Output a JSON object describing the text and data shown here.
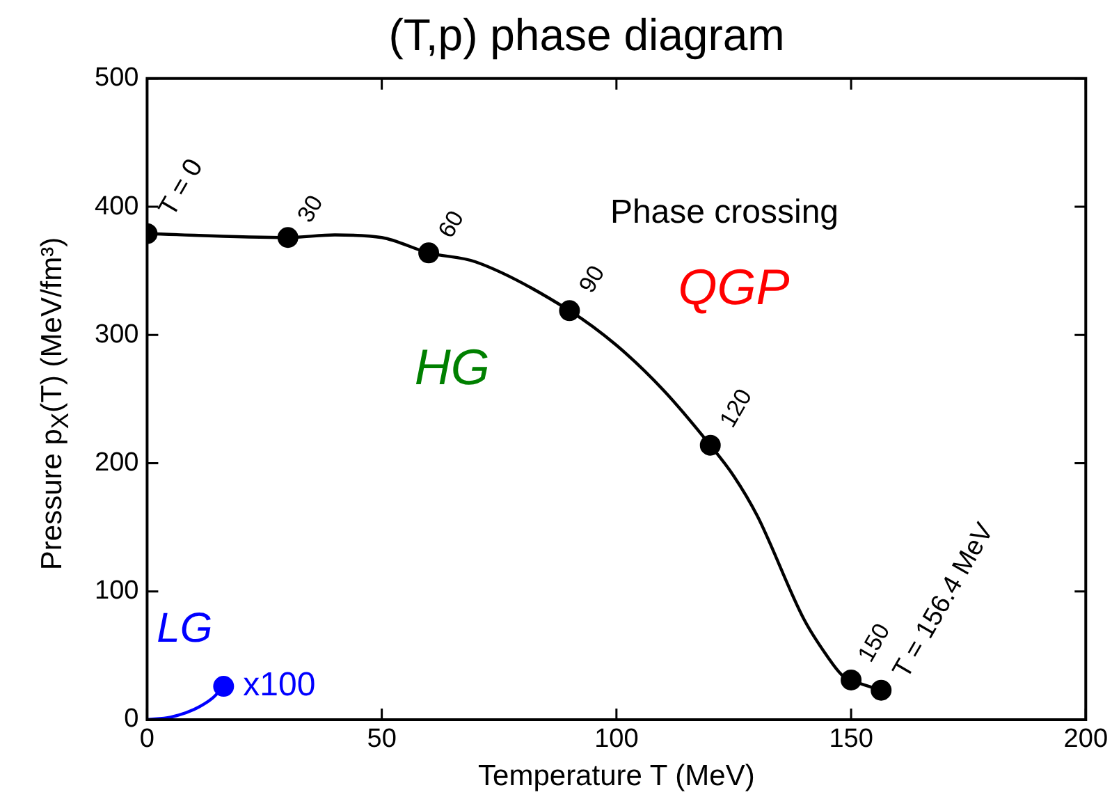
{
  "chart_data": {
    "type": "line",
    "title": "(T,p) phase diagram",
    "xlabel": "Temperature T (MeV)",
    "ylabel": "Pressure p$_{X}$(T)  (MeV/fm³)",
    "xlim": [
      0,
      200
    ],
    "ylim": [
      0,
      500
    ],
    "xticks": [
      0,
      50,
      100,
      150,
      200
    ],
    "yticks": [
      0,
      100,
      200,
      300,
      400,
      500
    ],
    "grid": false,
    "legend": false,
    "series": [
      {
        "color": "#000000",
        "marker": "none",
        "x": [
          0,
          30,
          40,
          50,
          60,
          70,
          90,
          100,
          110,
          120,
          125,
          130,
          140,
          145,
          148,
          150,
          156.4
        ],
        "values": [
          379,
          376,
          378,
          376,
          364,
          357,
          319,
          292,
          257,
          214,
          190,
          159,
          78,
          49,
          35,
          31,
          23
        ]
      },
      {
        "type": "scatter",
        "color": "#000000",
        "marker": "circle",
        "x": [
          0,
          30,
          60,
          90,
          120,
          150,
          156.4
        ],
        "values": [
          379,
          376,
          364,
          319,
          214,
          31,
          23
        ]
      },
      {
        "color": "#0000ff",
        "marker": "none",
        "x": [
          0,
          5,
          10,
          14,
          16.3
        ],
        "values": [
          0,
          2,
          8,
          17,
          26
        ]
      },
      {
        "type": "scatter",
        "color": "#0000ff",
        "marker": "circle",
        "x": [
          16.3
        ],
        "values": [
          26
        ]
      }
    ],
    "annotations": [
      {
        "text": "T = 0",
        "x": 0,
        "y": 379
      },
      {
        "text": "30",
        "x": 30,
        "y": 376
      },
      {
        "text": "60",
        "x": 60,
        "y": 364
      },
      {
        "text": "90",
        "x": 90,
        "y": 319
      },
      {
        "text": "120",
        "x": 120,
        "y": 214
      },
      {
        "text": "150",
        "x": 150,
        "y": 31
      },
      {
        "text": "T = 156.4 MeV",
        "x": 156.4,
        "y": 23
      },
      {
        "text": "x100",
        "x": 16.3,
        "y": 26
      },
      "LG",
      "HG",
      "QGP",
      "Phase crossing"
    ]
  }
}
